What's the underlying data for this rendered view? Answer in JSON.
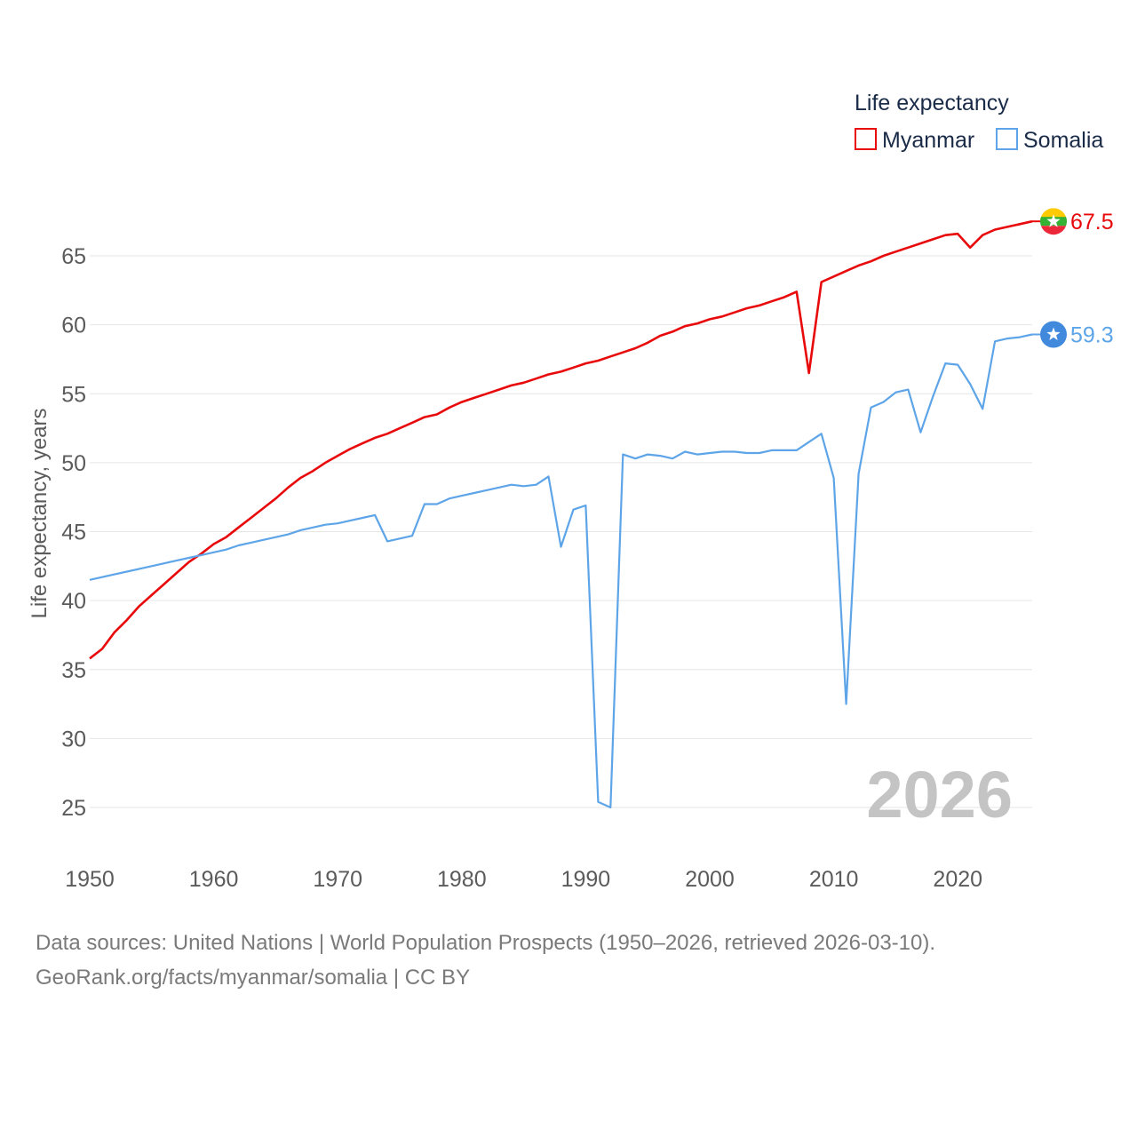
{
  "chart_data": {
    "type": "line",
    "legend_title": "Life expectancy",
    "ylabel": "Life expectancy, years",
    "xlabel": "",
    "watermark_year": "2026",
    "xlim": [
      1950,
      2026
    ],
    "ylim": [
      22,
      70
    ],
    "x_ticks": [
      1950,
      1960,
      1970,
      1980,
      1990,
      2000,
      2010,
      2020
    ],
    "y_ticks": [
      25,
      30,
      35,
      40,
      45,
      50,
      55,
      60,
      65
    ],
    "legend_position": "top-right",
    "series": [
      {
        "name": "Myanmar",
        "color": "#e8090b",
        "end_label": "67.5",
        "flag_icon": "myanmar-flag-icon",
        "x": [
          1950,
          1951,
          1952,
          1953,
          1954,
          1955,
          1956,
          1957,
          1958,
          1959,
          1960,
          1961,
          1962,
          1963,
          1964,
          1965,
          1966,
          1967,
          1968,
          1969,
          1970,
          1971,
          1972,
          1973,
          1974,
          1975,
          1976,
          1977,
          1978,
          1979,
          1980,
          1981,
          1982,
          1983,
          1984,
          1985,
          1986,
          1987,
          1988,
          1989,
          1990,
          1991,
          1992,
          1993,
          1994,
          1995,
          1996,
          1997,
          1998,
          1999,
          2000,
          2001,
          2002,
          2003,
          2004,
          2005,
          2006,
          2007,
          2008,
          2009,
          2010,
          2011,
          2012,
          2013,
          2014,
          2015,
          2016,
          2017,
          2018,
          2019,
          2020,
          2021,
          2022,
          2023,
          2024,
          2025,
          2026
        ],
        "values": [
          35.8,
          36.5,
          37.7,
          38.6,
          39.6,
          40.4,
          41.2,
          42.0,
          42.8,
          43.4,
          44.1,
          44.6,
          45.3,
          46.0,
          46.7,
          47.4,
          48.2,
          48.9,
          49.4,
          50.0,
          50.5,
          51.0,
          51.4,
          51.8,
          52.1,
          52.5,
          52.9,
          53.3,
          53.5,
          54.0,
          54.4,
          54.7,
          55.0,
          55.3,
          55.6,
          55.8,
          56.1,
          56.4,
          56.6,
          56.9,
          57.2,
          57.4,
          57.7,
          58.0,
          58.3,
          58.7,
          59.2,
          59.5,
          59.9,
          60.1,
          60.4,
          60.6,
          60.9,
          61.2,
          61.4,
          61.7,
          62.0,
          62.4,
          56.5,
          63.1,
          63.5,
          63.9,
          64.3,
          64.6,
          65.0,
          65.3,
          65.6,
          65.9,
          66.2,
          66.5,
          66.6,
          65.6,
          66.5,
          66.9,
          67.1,
          67.3,
          67.5
        ]
      },
      {
        "name": "Somalia",
        "color": "#5da5e8",
        "end_label": "59.3",
        "flag_icon": "somalia-flag-icon",
        "x": [
          1950,
          1951,
          1952,
          1953,
          1954,
          1955,
          1956,
          1957,
          1958,
          1959,
          1960,
          1961,
          1962,
          1963,
          1964,
          1965,
          1966,
          1967,
          1968,
          1969,
          1970,
          1971,
          1972,
          1973,
          1974,
          1975,
          1976,
          1977,
          1978,
          1979,
          1980,
          1981,
          1982,
          1983,
          1984,
          1985,
          1986,
          1987,
          1988,
          1989,
          1990,
          1991,
          1992,
          1993,
          1994,
          1995,
          1996,
          1997,
          1998,
          1999,
          2000,
          2001,
          2002,
          2003,
          2004,
          2005,
          2006,
          2007,
          2008,
          2009,
          2010,
          2011,
          2012,
          2013,
          2014,
          2015,
          2016,
          2017,
          2018,
          2019,
          2020,
          2021,
          2022,
          2023,
          2024,
          2025,
          2026
        ],
        "values": [
          41.5,
          41.7,
          41.9,
          42.1,
          42.3,
          42.5,
          42.7,
          42.9,
          43.1,
          43.3,
          43.5,
          43.7,
          44.0,
          44.2,
          44.4,
          44.6,
          44.8,
          45.1,
          45.3,
          45.5,
          45.6,
          45.8,
          46.0,
          46.2,
          44.3,
          44.5,
          44.7,
          47.0,
          47.0,
          47.4,
          47.6,
          47.8,
          48.0,
          48.2,
          48.4,
          48.3,
          48.4,
          49.0,
          43.9,
          46.6,
          46.9,
          25.4,
          25.0,
          50.6,
          50.3,
          50.6,
          50.5,
          50.3,
          50.8,
          50.6,
          50.7,
          50.8,
          50.8,
          50.7,
          50.7,
          50.9,
          50.9,
          50.9,
          51.5,
          52.1,
          48.9,
          32.5,
          49.2,
          54.0,
          54.4,
          55.1,
          55.3,
          52.2,
          54.8,
          57.2,
          57.1,
          55.7,
          53.9,
          58.8,
          59.0,
          59.1,
          59.3
        ]
      }
    ]
  },
  "source": {
    "line1": "Data sources: United Nations | World Population Prospects (1950–2026, retrieved 2026-03-10).",
    "line2": "GeoRank.org/facts/myanmar/somalia | CC BY"
  }
}
